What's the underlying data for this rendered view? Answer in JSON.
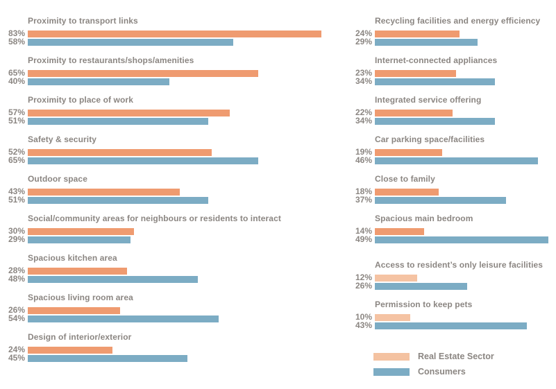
{
  "chart_data": {
    "type": "bar",
    "orientation": "horizontal",
    "value_unit": "%",
    "xlim": [
      0,
      100
    ],
    "grid": false,
    "series_names": [
      "Real Estate Sector",
      "Consumers"
    ],
    "colors": {
      "real_estate": "#ef9b70",
      "real_estate_light": "#f5c3a3",
      "consumers": "#7cacc4",
      "text": "#8b8682"
    },
    "columns": [
      {
        "rows": [
          {
            "label": "Proximity to transport links",
            "values": [
              83,
              58
            ]
          },
          {
            "label": "Proximity to restaurants/shops/amenities",
            "values": [
              65,
              40
            ]
          },
          {
            "label": "Proximity to place of work",
            "values": [
              57,
              51
            ]
          },
          {
            "label": "Safety & security",
            "values": [
              52,
              65
            ]
          },
          {
            "label": "Outdoor space",
            "values": [
              43,
              51
            ]
          },
          {
            "label": "Social/community areas for neighbours or residents to interact",
            "values": [
              30,
              29
            ]
          },
          {
            "label": "Spacious kitchen area",
            "values": [
              28,
              48
            ]
          },
          {
            "label": "Spacious living room area",
            "values": [
              26,
              54
            ]
          },
          {
            "label": "Design of interior/exterior",
            "values": [
              24,
              45
            ]
          }
        ]
      },
      {
        "rows": [
          {
            "label": "Recycling facilities and energy efficiency",
            "values": [
              24,
              29
            ]
          },
          {
            "label": "Internet-connected appliances",
            "values": [
              23,
              34
            ]
          },
          {
            "label": "Integrated service offering",
            "values": [
              22,
              34
            ]
          },
          {
            "label": "Car parking space/facilities",
            "values": [
              19,
              46
            ]
          },
          {
            "label": "Close to family",
            "values": [
              18,
              37
            ]
          },
          {
            "label": "Spacious main bedroom",
            "values": [
              14,
              49
            ]
          },
          {
            "label": "Access to resident’s only leisure facilities",
            "values": [
              12,
              26
            ],
            "light_first_bar": true,
            "extra_gap": true
          },
          {
            "label": "Permission to keep pets",
            "values": [
              10,
              43
            ],
            "light_first_bar": true
          }
        ]
      }
    ],
    "legend": {
      "position": "bottom-right",
      "items": [
        {
          "label": "Real Estate Sector",
          "color": "#f4c2a1"
        },
        {
          "label": "Consumers",
          "color": "#7cacc4"
        }
      ]
    }
  }
}
